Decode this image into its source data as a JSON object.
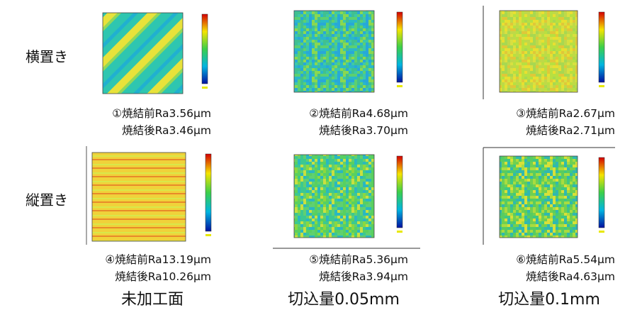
{
  "row_labels": [
    "横置き",
    "縦置き"
  ],
  "panels": [
    {
      "before": "①焼結前Ra3.56μm",
      "after": "焼結後Ra3.46μm"
    },
    {
      "before": "②焼結前Ra4.68μm",
      "after": "焼結後Ra3.70μm"
    },
    {
      "before": "③焼結前Ra2.67μm",
      "after": "焼結後Ra2.71μm"
    },
    {
      "before": "④焼結前Ra13.19μm",
      "after": "焼結後Ra10.26μm"
    },
    {
      "before": "⑤焼結前Ra5.36μm",
      "after": "焼結後Ra3.94μm"
    },
    {
      "before": "⑥焼結前Ra5.54μm",
      "after": "焼結後Ra4.63μm"
    }
  ],
  "column_labels": [
    "未加工面",
    "切込量0.05mm",
    "切込量0.1mm"
  ]
}
